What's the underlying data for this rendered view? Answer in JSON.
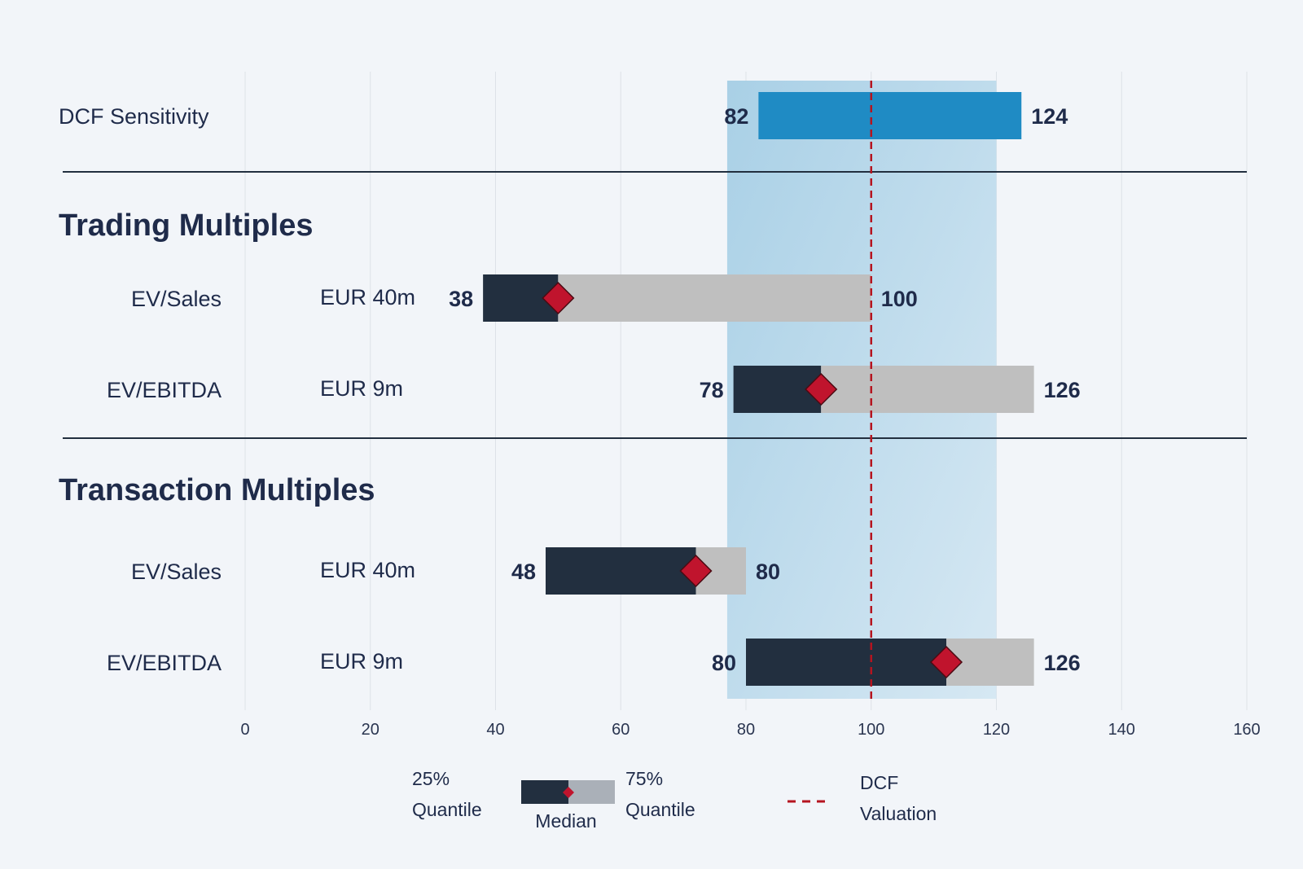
{
  "chart_data": {
    "type": "bar",
    "subtype": "football-field",
    "xlim": [
      0,
      160
    ],
    "x_ticks": [
      0,
      20,
      40,
      60,
      80,
      100,
      120,
      140,
      160
    ],
    "valuation_range": [
      77,
      120
    ],
    "dcf_valuation": 100,
    "dcf_sensitivity": {
      "label": "DCF Sensitivity",
      "low": 82,
      "high": 124,
      "low_label": "82",
      "high_label": "124"
    },
    "sections": [
      {
        "title": "Trading Multiples",
        "rows": [
          {
            "label": "EV/Sales",
            "metric": "EUR 40m",
            "low": 38,
            "median": 50,
            "high": 100,
            "low_label": "38",
            "high_label": "100"
          },
          {
            "label": "EV/EBITDA",
            "metric": "EUR 9m",
            "low": 78,
            "median": 92,
            "high": 126,
            "low_label": "78",
            "high_label": "126"
          }
        ]
      },
      {
        "title": "Transaction Multiples",
        "rows": [
          {
            "label": "EV/Sales",
            "metric": "EUR 40m",
            "low": 48,
            "median": 72,
            "high": 80,
            "low_label": "48",
            "high_label": "80"
          },
          {
            "label": "EV/EBITDA",
            "metric": "EUR 9m",
            "low": 80,
            "median": 112,
            "high": 126,
            "low_label": "80",
            "high_label": "126"
          }
        ]
      }
    ],
    "legend": {
      "q25": [
        "25%",
        "Quantile"
      ],
      "median": "Median",
      "q75": [
        "75%",
        "Quantile"
      ],
      "dcf": [
        "DCF",
        "Valuation"
      ]
    },
    "colors": {
      "range_band": "#a9d0e6",
      "dcf_bar": "#1f8bc4",
      "q_low": "#222f3f",
      "q_high": "#bfbfbf",
      "median": "#c0142d",
      "dcf_line": "#b5141f",
      "text": "#1f2b4a"
    }
  }
}
